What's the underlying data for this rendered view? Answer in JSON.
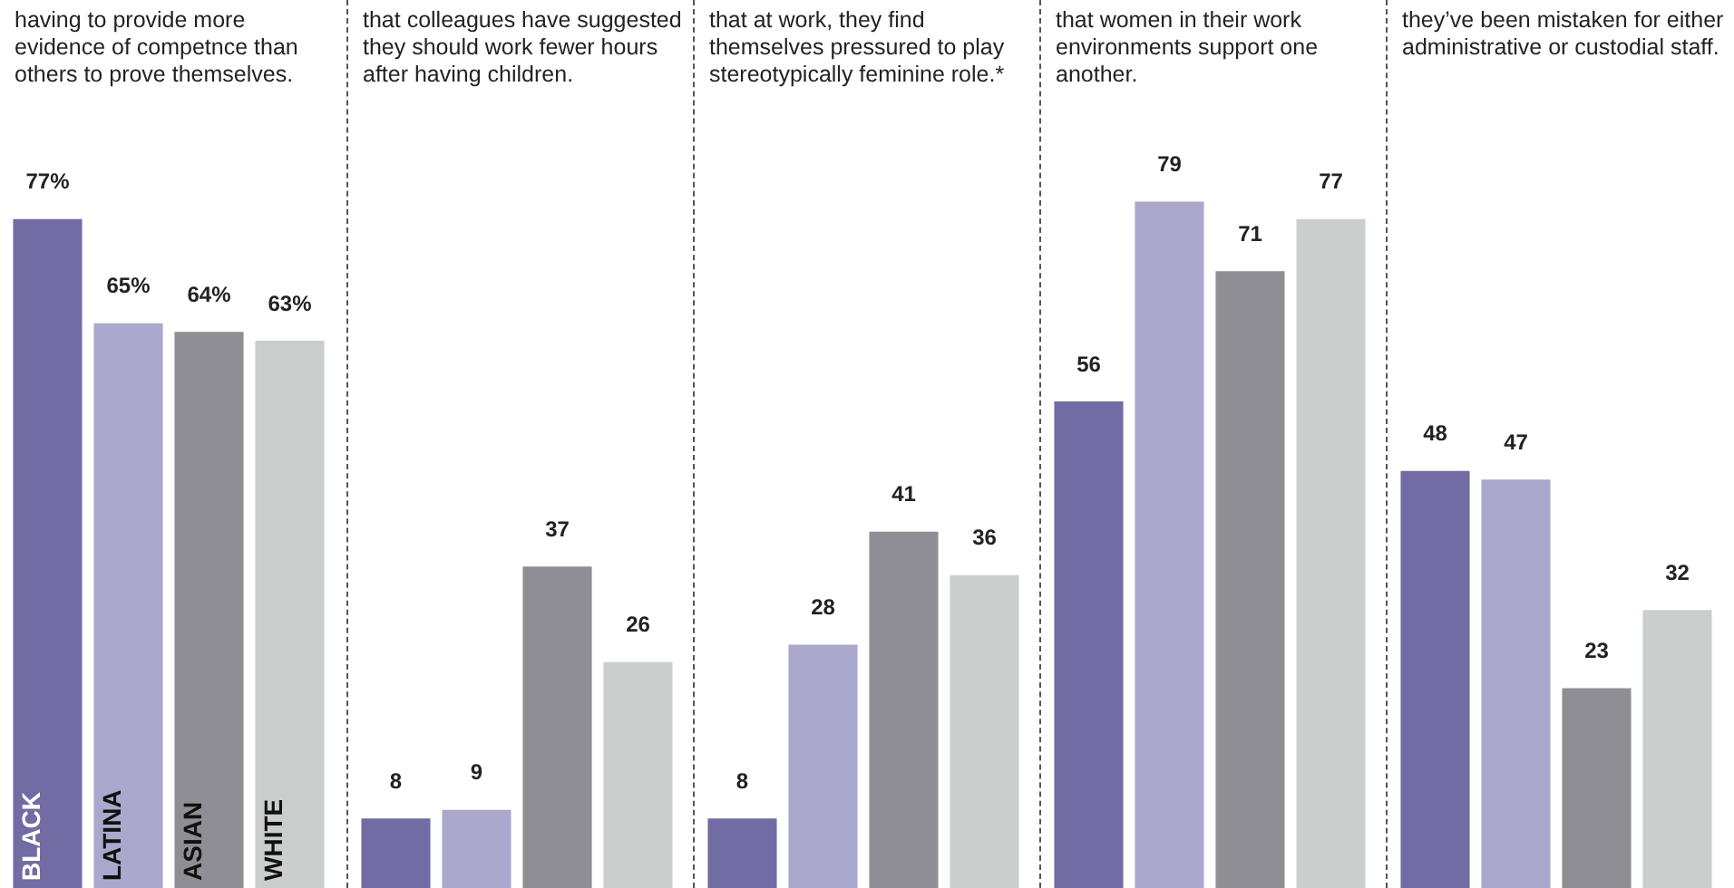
{
  "chart_data": [
    {
      "type": "bar",
      "title": "having to provide more evidence of competnce than others to prove themselves.",
      "categories": [
        "BLACK",
        "LATINA",
        "ASIAN",
        "WHITE"
      ],
      "values": [
        77,
        65,
        64,
        63
      ],
      "colors": [
        "#716ca3",
        "#aaa8cc",
        "#8f8e94",
        "#cacfcd"
      ],
      "value_labels": [
        "77%",
        "65%",
        "64%",
        "63%"
      ],
      "tick_labels": "x"
    },
    {
      "type": "bar",
      "title": "that colleagues have suggested they should work fewer hours after having children.",
      "categories": [
        null,
        null,
        null,
        null
      ],
      "values": [
        8,
        9,
        37,
        26
      ],
      "colors": [
        "#716ca3",
        "#aaa8cc",
        "#8f8e94",
        "#cacfcd"
      ],
      "data_labels": true,
      "tick_labels": false
    },
    {
      "type": "bar",
      "title": "that at work, they find themselves pressured to play stereotypically feminine role.*",
      "categories": [
        null,
        null,
        null,
        null
      ],
      "values": [
        8,
        28,
        41,
        36
      ],
      "colors": [
        "#716ca3",
        "#aaa8cc",
        "#8f8e94",
        "#cacfcd"
      ],
      "data_labels": true,
      "tick_labels": false
    },
    {
      "type": "bar",
      "title": "that women in their work environments support one another.",
      "categories": [
        null,
        null,
        null,
        null
      ],
      "values": [
        56,
        79,
        71,
        77
      ],
      "colors": [
        "#716ca3",
        "#aaa8cc",
        "#8f8e94",
        "#cacfcd"
      ],
      "data_labels": true,
      "tick_labels": false
    },
    {
      "type": "bar",
      "title": "they’ve been mistaken for either administrative or custodial staff.",
      "categories": [
        null,
        null,
        null,
        null
      ],
      "values": [
        48,
        47,
        23,
        32
      ],
      "colors": [
        "#716ca3",
        "#aaa8cc",
        "#8f8e94",
        "#cacfcd"
      ],
      "data_labels": true,
      "tick_labels": false
    }
  ]
}
